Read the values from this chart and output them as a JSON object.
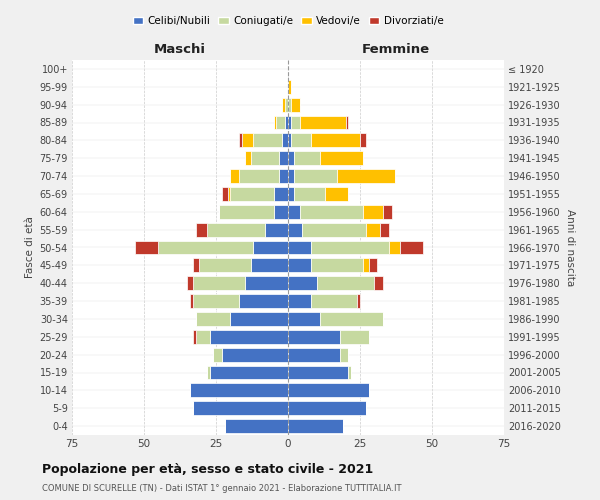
{
  "age_groups": [
    "0-4",
    "5-9",
    "10-14",
    "15-19",
    "20-24",
    "25-29",
    "30-34",
    "35-39",
    "40-44",
    "45-49",
    "50-54",
    "55-59",
    "60-64",
    "65-69",
    "70-74",
    "75-79",
    "80-84",
    "85-89",
    "90-94",
    "95-99",
    "100+"
  ],
  "birth_years": [
    "2016-2020",
    "2011-2015",
    "2006-2010",
    "2001-2005",
    "1996-2000",
    "1991-1995",
    "1986-1990",
    "1981-1985",
    "1976-1980",
    "1971-1975",
    "1966-1970",
    "1961-1965",
    "1956-1960",
    "1951-1955",
    "1946-1950",
    "1941-1945",
    "1936-1940",
    "1931-1935",
    "1926-1930",
    "1921-1925",
    "≤ 1920"
  ],
  "maschi": {
    "celibi": [
      22,
      33,
      34,
      27,
      23,
      27,
      20,
      17,
      15,
      13,
      12,
      8,
      5,
      5,
      3,
      3,
      2,
      1,
      0,
      0,
      0
    ],
    "coniugati": [
      0,
      0,
      0,
      1,
      3,
      5,
      12,
      16,
      18,
      18,
      33,
      20,
      19,
      15,
      14,
      10,
      10,
      3,
      1,
      0,
      0
    ],
    "vedovi": [
      0,
      0,
      0,
      0,
      0,
      0,
      0,
      0,
      0,
      0,
      0,
      0,
      0,
      1,
      3,
      2,
      4,
      1,
      1,
      0,
      0
    ],
    "divorziati": [
      0,
      0,
      0,
      0,
      0,
      1,
      0,
      1,
      2,
      2,
      8,
      4,
      0,
      2,
      0,
      0,
      1,
      0,
      0,
      0,
      0
    ]
  },
  "femmine": {
    "nubili": [
      19,
      27,
      28,
      21,
      18,
      18,
      11,
      8,
      10,
      8,
      8,
      5,
      4,
      2,
      2,
      2,
      1,
      1,
      0,
      0,
      0
    ],
    "coniugate": [
      0,
      0,
      0,
      1,
      3,
      10,
      22,
      16,
      20,
      18,
      27,
      22,
      22,
      11,
      15,
      9,
      7,
      3,
      1,
      0,
      0
    ],
    "vedove": [
      0,
      0,
      0,
      0,
      0,
      0,
      0,
      0,
      0,
      2,
      4,
      5,
      7,
      8,
      20,
      15,
      17,
      16,
      3,
      1,
      0
    ],
    "divorziate": [
      0,
      0,
      0,
      0,
      0,
      0,
      0,
      1,
      3,
      3,
      8,
      3,
      3,
      0,
      0,
      0,
      2,
      1,
      0,
      0,
      0
    ]
  },
  "colors": {
    "celibi": "#4472c4",
    "coniugati": "#c6d9a0",
    "vedovi": "#ffc000",
    "divorziati": "#c0392b"
  },
  "legend_labels": [
    "Celibi/Nubili",
    "Coniugati/e",
    "Vedovi/e",
    "Divorziati/e"
  ],
  "title": "Popolazione per età, sesso e stato civile - 2021",
  "subtitle": "COMUNE DI SCURELLE (TN) - Dati ISTAT 1° gennaio 2021 - Elaborazione TUTTITALIA.IT",
  "xlabel_left": "Maschi",
  "xlabel_right": "Femmine",
  "ylabel_left": "Fasce di età",
  "ylabel_right": "Anni di nascita",
  "xlim": 75,
  "background_color": "#f0f0f0",
  "plot_bg_color": "#ffffff"
}
